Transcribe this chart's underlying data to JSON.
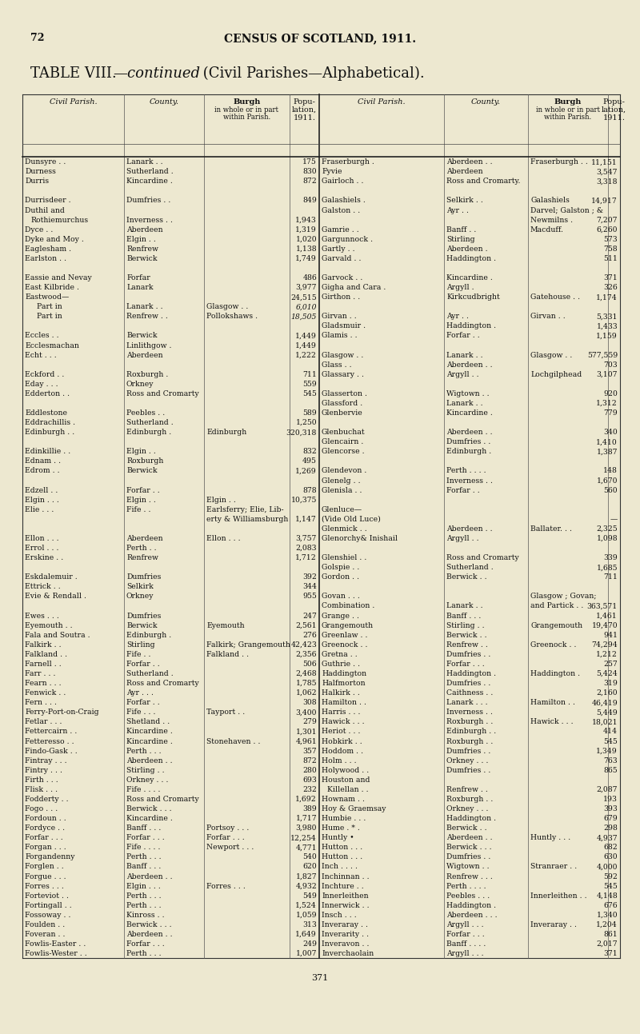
{
  "page_number": "72",
  "header": "CENSUS OF SCOTLAND, 1911.",
  "title_roman": "TABLE VIII.",
  "title_italic": "—continued",
  "title_rest": " (Civil Parishes—Alphabetical).",
  "bg_color": "#ede8d0",
  "rows": [
    [
      "Dunsyre . .",
      "Lanark . .",
      "",
      "175",
      "Fraserburgh .",
      "Aberdeen . .",
      "Fraserburgh . .",
      "11,151"
    ],
    [
      "Durness",
      "Sutherland .",
      "",
      "830",
      "Fyvie",
      "Aberdeen",
      "",
      "3,547"
    ],
    [
      "Durris",
      "Kincardine .",
      "",
      "872",
      "Gairloch . .",
      "Ross and Cromarty.",
      "",
      "3,318"
    ],
    [
      "",
      "",
      "",
      "",
      "",
      "",
      "",
      ""
    ],
    [
      "Durrisdeer .",
      "Dumfries . .",
      "",
      "849",
      "Galashiels .",
      "Selkirk . .",
      "Galashiels",
      "14,917"
    ],
    [
      "Duthil and",
      "",
      "",
      "",
      "Galston . .",
      "Ayr . .",
      "Darvel; Galston ; &",
      ""
    ],
    [
      "  Rothiemurchus",
      "Inverness . .",
      "",
      "1,943",
      "",
      "",
      "Newmilns .",
      "7,207"
    ],
    [
      "Dyce . .",
      "Aberdeen",
      "",
      "1,319",
      "Gamrie . .",
      "Banff . .",
      "Macduff.",
      "6,260"
    ],
    [
      "Dyke and Moy .",
      "Elgin . .",
      "",
      "1,020",
      "Gargunnock .",
      "Stirling",
      "",
      "573"
    ],
    [
      "Eaglesham .",
      "Renfrew",
      "",
      "1,138",
      "Gartly . .",
      "Aberdeen .",
      "",
      "758"
    ],
    [
      "Earlston . .",
      "Berwick",
      "",
      "1,749",
      "Garvald . .",
      "Haddington .",
      "",
      "511"
    ],
    [
      "",
      "",
      "",
      "",
      "",
      "",
      "",
      ""
    ],
    [
      "Eassie and Nevay",
      "Forfar",
      "",
      "486",
      "Garvock . .",
      "Kincardine .",
      "",
      "371"
    ],
    [
      "East Kilbride .",
      "Lanark",
      "",
      "3,977",
      "Gigha and Cara .",
      "Argyll .",
      "",
      "326"
    ],
    [
      "Eastwood—",
      "",
      "",
      "24,515",
      "Girthon . .",
      "Kirkcudbright",
      "Gatehouse . .",
      "1,174"
    ],
    [
      "        Part in",
      "Lanark . .",
      "Glasgow . .",
      "6,010",
      "",
      "",
      "",
      ""
    ],
    [
      "        Part in",
      "Renfrew . .",
      "Pollokshaws .",
      "18,505",
      "Girvan . .",
      "Ayr . .",
      "Girvan . .",
      "5,331"
    ],
    [
      "",
      "",
      "",
      "",
      "Gladsmuir .",
      "Haddington .",
      "",
      "1,433"
    ],
    [
      "Eccles . .",
      "Berwick",
      "",
      "1,449",
      "Glamis . .",
      "Forfar . .",
      "",
      "1,159"
    ],
    [
      "Ecclesmachan",
      "Linlithgow .",
      "",
      "1,449",
      "",
      "",
      "",
      ""
    ],
    [
      "Echt . . .",
      "Aberdeen",
      "",
      "1,222",
      "Glasgow . .",
      "Lanark . .",
      "Glasgow . .",
      "577,559"
    ],
    [
      "",
      "",
      "",
      "",
      "Glass . .",
      "Aberdeen . .",
      "",
      "703"
    ],
    [
      "Eckford . .",
      "Roxburgh .",
      "",
      "711",
      "Glassary . .",
      "Argyll . .",
      "Lochgilphead",
      "3,107"
    ],
    [
      "Eday . . .",
      "Orkney",
      "",
      "559",
      "",
      "",
      "",
      ""
    ],
    [
      "Edderton . .",
      "Ross and Cromarty",
      "",
      "545",
      "Glasserton .",
      "Wigtown . .",
      "",
      "920"
    ],
    [
      "",
      "",
      "",
      "",
      "Glassford .",
      "Lanark . .",
      "",
      "1,312"
    ],
    [
      "Eddlestone",
      "Peebles . .",
      "",
      "589",
      "Glenbervie",
      "Kincardine .",
      "",
      "779"
    ],
    [
      "Eddrachillis .",
      "Sutherland .",
      "",
      "1,250",
      "",
      "",
      "",
      ""
    ],
    [
      "Edinburgh . .",
      "Edinburgh .",
      "Edinburgh",
      "320,318",
      "Glenbuchat",
      "Aberdeen . .",
      "",
      "340"
    ],
    [
      "",
      "",
      "",
      "",
      "Glencairn .",
      "Dumfries . .",
      "",
      "1,410"
    ],
    [
      "Edinkillie . .",
      "Elgin . .",
      "",
      "832",
      "Glencorse .",
      "Edinburgh .",
      "",
      "1,387"
    ],
    [
      "Ednam . .",
      "Roxburgh",
      "",
      "495",
      "",
      "",
      "",
      ""
    ],
    [
      "Edrom . .",
      "Berwick",
      "",
      "1,269",
      "Glendevon .",
      "Perth . . . .",
      "",
      "148"
    ],
    [
      "",
      "",
      "",
      "",
      "Glenelg . .",
      "Inverness . .",
      "",
      "1,670"
    ],
    [
      "Edzell . .",
      "Forfar . .",
      "",
      "878",
      "Glenisla . .",
      "Forfar . .",
      "",
      "560"
    ],
    [
      "Elgin . . .",
      "Elgin . .",
      "Elgin . .",
      "10,375",
      "",
      "",
      "",
      ""
    ],
    [
      "Elie . . .",
      "Fife . .",
      "Earlsferry; Elie, Lib-",
      "",
      "Glenluce—",
      "",
      "",
      ""
    ],
    [
      "",
      "",
      "erty & Williamsburgh",
      "1,147",
      "(Vide Old Luce)",
      "",
      "",
      "—"
    ],
    [
      "",
      "",
      "",
      "",
      "Glenmick . .",
      "Aberdeen . .",
      "Ballater. . .",
      "2,325"
    ],
    [
      "Ellon . . .",
      "Aberdeen",
      "Ellon . . .",
      "3,757",
      "Glenorchy& Inishail",
      "Argyll . .",
      "",
      "1,098"
    ],
    [
      "Errol . . .",
      "Perth . .",
      "",
      "2,083",
      "",
      "",
      "",
      ""
    ],
    [
      "Erskine . .",
      "Renfrew",
      "",
      "1,712",
      "Glenshiel . .",
      "Ross and Cromarty",
      "",
      "339"
    ],
    [
      "",
      "",
      "",
      "",
      "Golspie . .",
      "Sutherland .",
      "",
      "1,685"
    ],
    [
      "Eskdalemuir .",
      "Dumfries",
      "",
      "392",
      "Gordon . .",
      "Berwick . .",
      "",
      "711"
    ],
    [
      "Ettrick . .",
      "Selkirk",
      "",
      "344",
      "",
      "",
      "",
      ""
    ],
    [
      "Evie & Rendall .",
      "Orkney",
      "",
      "955",
      "Govan . . .",
      "",
      "Glasgow ; Govan;",
      ""
    ],
    [
      "",
      "",
      "",
      "",
      "Combination .",
      "Lanark . .",
      "and Partick . .",
      "363,571"
    ],
    [
      "Ewes . . .",
      "Dumfries",
      "",
      "247",
      "Grange . .",
      "Banff . . .",
      "",
      "1,461"
    ],
    [
      "Eyemouth . .",
      "Berwick",
      "Eyemouth",
      "2,561",
      "Grangemouth",
      "Stirling . .",
      "Grangemouth",
      "19,470"
    ],
    [
      "Fala and Soutra .",
      "Edinburgh .",
      "",
      "276",
      "Greenlaw . .",
      "Berwick . .",
      "",
      "941"
    ],
    [
      "Falkirk . .",
      "Stirling",
      "Falkirk; Grangemouth",
      "42,423",
      "Greenock . .",
      "Renfrew . .",
      "Greenock . .",
      "74,294"
    ],
    [
      "Falkland . .",
      "Fife . .",
      "Falkland . .",
      "2,356",
      "Gretna . .",
      "Dumfries . .",
      "",
      "1,212"
    ],
    [
      "Farnell . .",
      "Forfar . .",
      "",
      "506",
      "Guthrie . .",
      "Forfar . . .",
      "",
      "257"
    ],
    [
      "Farr . . .",
      "Sutherland .",
      "",
      "2,468",
      "Haddington",
      "Haddington .",
      "Haddington .",
      "5,424"
    ],
    [
      "Fearn . . .",
      "Ross and Cromarty",
      "",
      "1,785",
      "Halfmorton",
      "Dumfries . .",
      "",
      "319"
    ],
    [
      "Fenwick . .",
      "Ayr . . .",
      "",
      "1,062",
      "Halkirk . .",
      "Caithness . .",
      "",
      "2,160"
    ],
    [
      "Fern . . .",
      "Forfar . .",
      "",
      "308",
      "Hamilton . .",
      "Lanark . . .",
      "Hamilton . .",
      "46,419"
    ],
    [
      "Ferry-Port-on-Craig",
      "Fife . . .",
      "Tayport . .",
      "3,400",
      "Harris . . .",
      "Inverness . .",
      "",
      "5,449"
    ],
    [
      "Fetlar . . .",
      "Shetland . .",
      "",
      "279",
      "Hawick . . .",
      "Roxburgh . .",
      "Hawick . . .",
      "18,021"
    ],
    [
      "Fettercairn . .",
      "Kincardine .",
      "",
      "1,301",
      "Heriot . . .",
      "Edinburgh . .",
      "",
      "414"
    ],
    [
      "Fetteresso . .",
      "Kincardine .",
      "Stonehaven . .",
      "4,961",
      "Hobkirk . .",
      "Roxburgh . .",
      "",
      "545"
    ],
    [
      "Findo-Gask . .",
      "Perth . . .",
      "",
      "357",
      "Hoddom . .",
      "Dumfries . .",
      "",
      "1,349"
    ],
    [
      "Fintray . . .",
      "Aberdeen . .",
      "",
      "872",
      "Holm . . .",
      "Orkney . . .",
      "",
      "763"
    ],
    [
      "Fintry . . .",
      "Stirling . .",
      "",
      "280",
      "Holywood . .",
      "Dumfries . .",
      "",
      "865"
    ],
    [
      "Firth . . .",
      "Orkney . . .",
      "",
      "693",
      "Houston and",
      "",
      "",
      ""
    ],
    [
      "Flisk . . .",
      "Fife . . . .",
      "",
      "232",
      "  Killellan . .",
      "Renfrew . .",
      "",
      "2,087"
    ],
    [
      "Fodderty . .",
      "Ross and Cromarty",
      "",
      "1,692",
      "Hownam . .",
      "Roxburgh . .",
      "",
      "193"
    ],
    [
      "Fogo . . .",
      "Berwick . . .",
      "",
      "389",
      "Hoy & Graemsay",
      "Orkney . . .",
      "",
      "393"
    ],
    [
      "Fordoun . .",
      "Kincardine .",
      "",
      "1,717",
      "Humbie . . .",
      "Haddington .",
      "",
      "679"
    ],
    [
      "Fordyce . .",
      "Banff . . .",
      "Portsoy . . .",
      "3,980",
      "Hume . * .",
      "Berwick . .",
      "",
      "298"
    ],
    [
      "Forfar . . .",
      "Forfar . . .",
      "Forfar . . .",
      "12,254",
      "Huntly •",
      "Aberdeen . .",
      "Huntly . . .",
      "4,937"
    ],
    [
      "Forgan . . .",
      "Fife . . . .",
      "Newport . . .",
      "4,771",
      "Hutton . . .",
      "Berwick . . .",
      "",
      "682"
    ],
    [
      "Forgandenny",
      "Perth . . .",
      "",
      "540",
      "Hutton . . .",
      "Dumfries . .",
      "",
      "630"
    ],
    [
      "Forglen . .",
      "Banff . . .",
      "",
      "620",
      "Inch . . . .",
      "Wigtown . .",
      "Stranraer . .",
      "4,000"
    ],
    [
      "Forgue . . .",
      "Aberdeen . .",
      "",
      "1,827",
      "Inchinnan . .",
      "Renfrew . . .",
      "",
      "592"
    ],
    [
      "Forres . . .",
      "Elgin . . .",
      "Forres . . .",
      "4,932",
      "Inchture . .",
      "Perth . . . .",
      "",
      "545"
    ],
    [
      "Forteviot . .",
      "Perth . . .",
      "",
      "549",
      "Innerleithen",
      "Peebles . . .",
      "Innerleithen . .",
      "4,148"
    ],
    [
      "Fortingall . .",
      "Perth . . .",
      "",
      "1,524",
      "Innerwick . .",
      "Haddington .",
      "",
      "676"
    ],
    [
      "Fossoway . .",
      "Kinross . .",
      "",
      "1,059",
      "Insch . . .",
      "Aberdeen . . .",
      "",
      "1,340"
    ],
    [
      "Foulden . .",
      "Berwick . . .",
      "",
      "313",
      "Inveraray . .",
      "Argyll . . .",
      "Inveraray . .",
      "1,204"
    ],
    [
      "Foveran . .",
      "Aberdeen . .",
      "",
      "1,649",
      "Inverarity . .",
      "Forfar . . .",
      "",
      "861"
    ],
    [
      "Fowlis-Easter . .",
      "Forfar . . .",
      "",
      "249",
      "Inveravon . .",
      "Banff . . . .",
      "",
      "2,017"
    ],
    [
      "Fowlis-Wester . .",
      "Perth . . .",
      "",
      "1,007",
      "Inverchaolain",
      "Argyll . . .",
      "",
      "371"
    ]
  ]
}
